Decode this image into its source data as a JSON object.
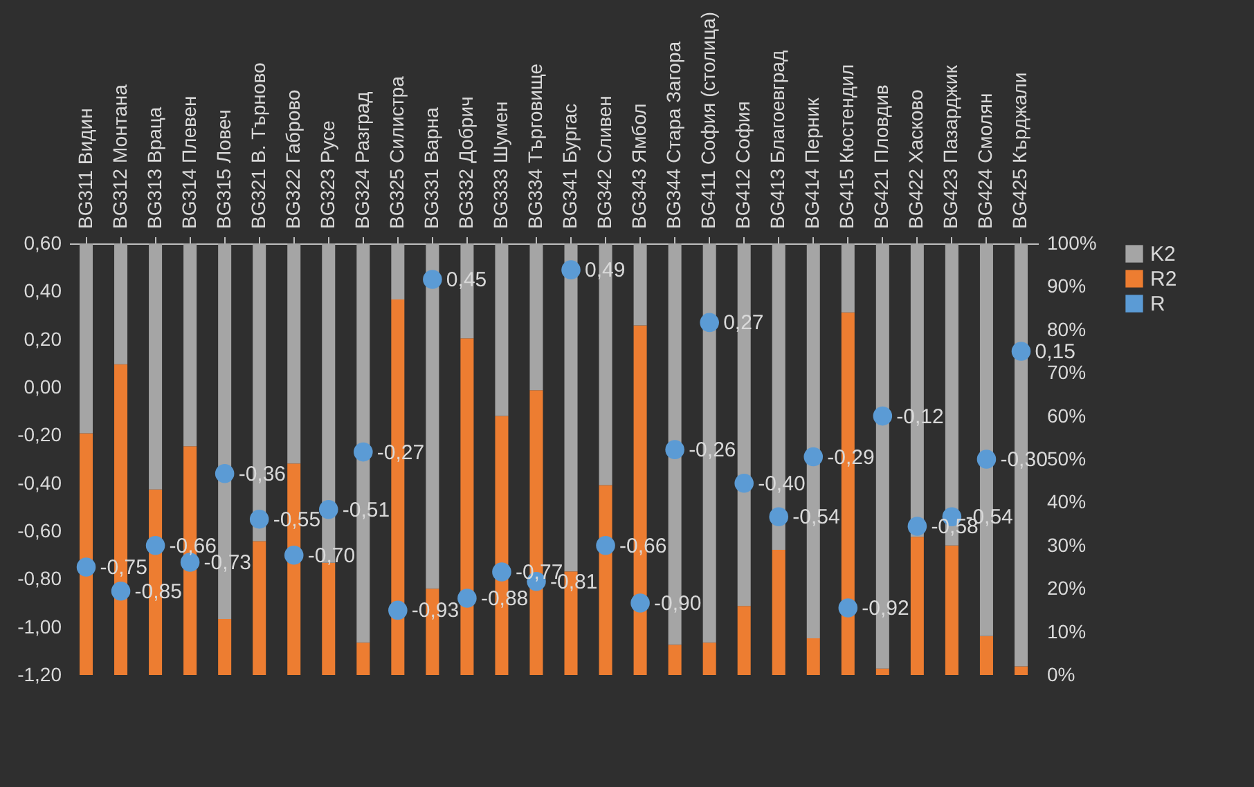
{
  "chart_data": {
    "type": "bar",
    "stacked": true,
    "legend": "right",
    "marker": "circle",
    "categories": [
      "BG311 Видин",
      "BG312 Монтана",
      "BG313 Враца",
      "BG314 Плевен",
      "BG315 Ловеч",
      "BG321 В. Търново",
      "BG322 Габрово",
      "BG323 Русе",
      "BG324 Разград",
      "BG325 Силистра",
      "BG331 Варна",
      "BG332 Добрич",
      "BG333 Шумен",
      "BG334 Търговище",
      "BG341 Бургас",
      "BG342 Сливен",
      "BG343 Ямбол",
      "BG344 Стара Загора",
      "BG411 София (столица)",
      "BG412 София",
      "BG413 Благоевград",
      "BG414 Перник",
      "BG415 Кюстендил",
      "BG421 Пловдив",
      "BG422 Хасково",
      "BG423 Пазарджик",
      "BG424 Смолян",
      "BG425 Кърджали"
    ],
    "ylim": [
      -1.2,
      0.6
    ],
    "yticks": [
      {
        "value": -1.2,
        "label": "-1,20"
      },
      {
        "value": -1,
        "label": "-1,00"
      },
      {
        "value": -0.8,
        "label": "-0,80"
      },
      {
        "value": -0.6,
        "label": "-0,60"
      },
      {
        "value": -0.4,
        "label": "-0,40"
      },
      {
        "value": -0.2,
        "label": "-0,20"
      },
      {
        "value": 0,
        "label": "0,00"
      },
      {
        "value": 0.2,
        "label": "0,20"
      },
      {
        "value": 0.4,
        "label": "0,40"
      },
      {
        "value": 0.6,
        "label": "0,60"
      }
    ],
    "y2lim": [
      0,
      100
    ],
    "y2ticks": [
      {
        "value": 0,
        "label": "0%"
      },
      {
        "value": 10,
        "label": "10%"
      },
      {
        "value": 20,
        "label": "20%"
      },
      {
        "value": 30,
        "label": "30%"
      },
      {
        "value": 40,
        "label": "40%"
      },
      {
        "value": 50,
        "label": "50%"
      },
      {
        "value": 60,
        "label": "60%"
      },
      {
        "value": 70,
        "label": "70%"
      },
      {
        "value": 80,
        "label": "80%"
      },
      {
        "value": 90,
        "label": "90%"
      },
      {
        "value": 100,
        "label": "100%"
      }
    ],
    "series": [
      {
        "name": "R2",
        "type": "bar",
        "axis": "y2",
        "color": "#ed7d31",
        "values": [
          56,
          72,
          43,
          53,
          13,
          31,
          49,
          26,
          7.5,
          87,
          20,
          78,
          60,
          66,
          24,
          44,
          81,
          7,
          7.5,
          16,
          29,
          8.5,
          84,
          1.5,
          32,
          30,
          9,
          2
        ]
      },
      {
        "name": "K2",
        "type": "bar",
        "axis": "y2",
        "color": "#a5a5a5",
        "values": [
          44,
          28,
          57,
          47,
          87,
          69,
          51,
          74,
          92.5,
          13,
          80,
          22,
          40,
          34,
          76,
          56,
          19,
          93,
          92.5,
          84,
          71,
          91.5,
          16,
          98.5,
          68,
          70,
          91,
          98
        ]
      },
      {
        "name": "R",
        "type": "scatter",
        "axis": "y",
        "color": "#5b9bd5",
        "values": [
          -0.75,
          -0.85,
          -0.66,
          -0.73,
          -0.36,
          -0.55,
          -0.7,
          -0.51,
          -0.27,
          -0.93,
          0.45,
          -0.88,
          -0.77,
          -0.81,
          0.49,
          -0.66,
          -0.9,
          -0.26,
          0.27,
          -0.4,
          -0.54,
          -0.29,
          -0.92,
          -0.12,
          -0.58,
          -0.54,
          -0.3,
          0.15
        ],
        "value_labels": [
          "-0,75",
          "-0,85",
          "-0,66",
          "-0,73",
          "-0,36",
          "-0,55",
          "-0,70",
          "-0,51",
          "-0,27",
          "-0,93",
          "0,45",
          "-0,88",
          "-0,77",
          "-0,81",
          "0,49",
          "-0,66",
          "-0,90",
          "-0,26",
          "0,27",
          "-0,40",
          "-0,54",
          "-0,29",
          "-0,92",
          "-0,12",
          "-0,58",
          "-0,54",
          "-0,30",
          "0,15"
        ]
      }
    ]
  }
}
